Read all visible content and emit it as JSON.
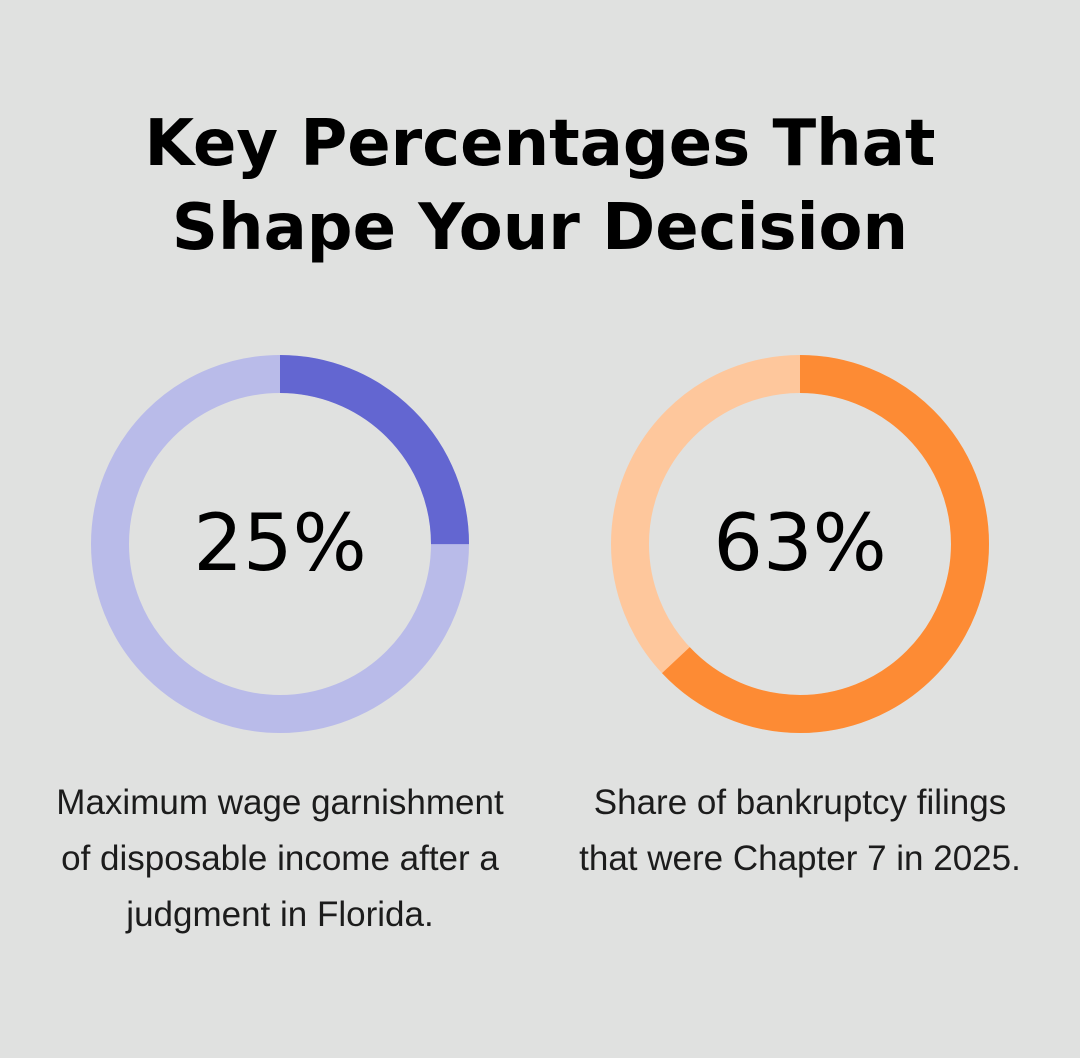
{
  "title_lines": [
    "Key Percentages That",
    "Shape Your Decision"
  ],
  "chart_data": [
    {
      "type": "pie",
      "value": 25,
      "value_label": "25%",
      "caption": "Maximum wage garnishment of disposable income after a judgment in Florida.",
      "color_fill": "#6366d1",
      "color_track": "#b9bbe9"
    },
    {
      "type": "pie",
      "value": 63,
      "value_label": "63%",
      "caption": "Share of bankruptcy filings that were Chapter 7 in 2025.",
      "color_fill": "#fd8b34",
      "color_track": "#fec79c"
    }
  ]
}
